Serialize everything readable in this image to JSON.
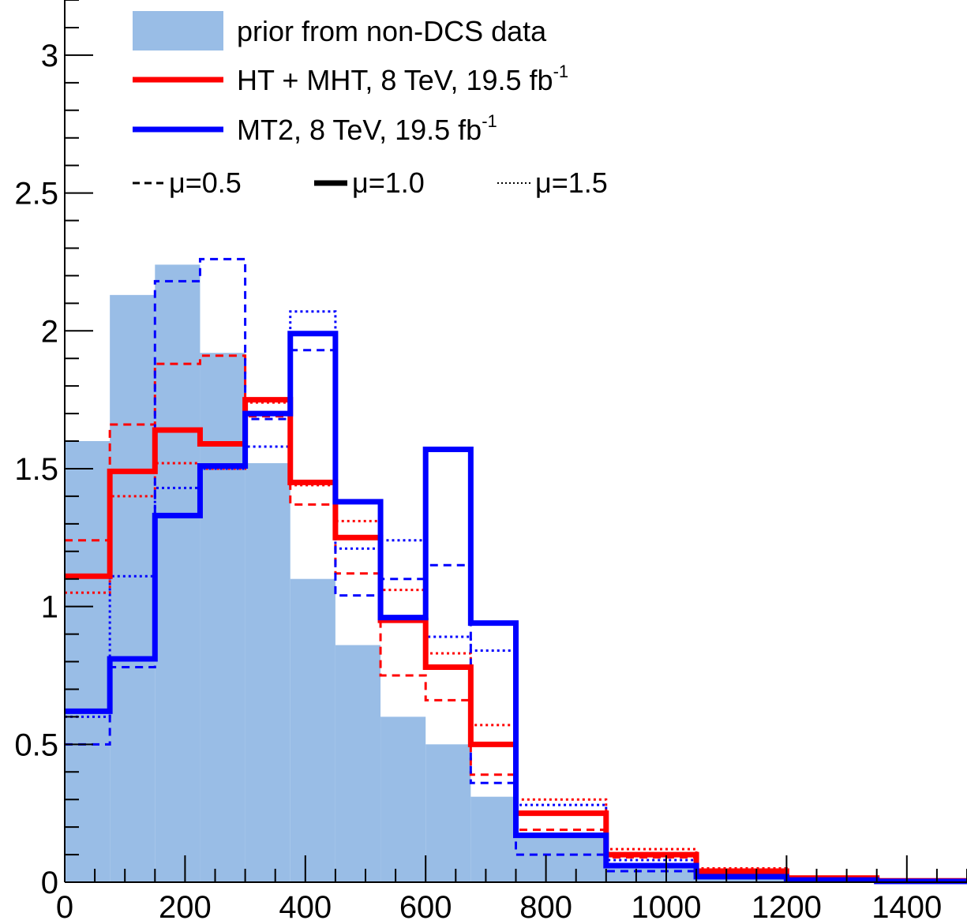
{
  "chart_data": {
    "type": "histogram",
    "xlim": [
      0,
      1500
    ],
    "ylim": [
      0,
      3.2
    ],
    "bin_edges": [
      0,
      75,
      150,
      225,
      300,
      375,
      450,
      525,
      600,
      675,
      750,
      900,
      1050,
      1200,
      1350,
      1500
    ],
    "x_ticks": [
      "0",
      "200",
      "400",
      "600",
      "800",
      "1000",
      "1200",
      "1400"
    ],
    "x_tick_values": [
      0,
      200,
      400,
      600,
      800,
      1000,
      1200,
      1400
    ],
    "y_ticks": [
      "0",
      "0.5",
      "1",
      "1.5",
      "2",
      "2.5",
      "3"
    ],
    "y_tick_values": [
      0,
      0.5,
      1,
      1.5,
      2,
      2.5,
      3
    ],
    "prior": {
      "name": "prior from non-DCS data",
      "color": "#99bde6",
      "values": [
        1.6,
        2.13,
        2.24,
        1.92,
        1.52,
        1.1,
        0.86,
        0.6,
        0.5,
        0.31,
        0.17,
        0.06,
        0.02,
        0.01,
        0.0
      ]
    },
    "series": [
      {
        "analysis": "HT + MHT",
        "mu": "0.5",
        "color": "#ff0000",
        "style": "dashed",
        "values": [
          1.24,
          1.66,
          1.88,
          1.91,
          1.69,
          1.37,
          1.12,
          0.75,
          0.66,
          0.39,
          0.19,
          0.09,
          0.035,
          0.015,
          0.004
        ]
      },
      {
        "analysis": "HT + MHT",
        "mu": "1.0",
        "color": "#ff0000",
        "style": "solid",
        "values": [
          1.11,
          1.49,
          1.64,
          1.59,
          1.75,
          1.45,
          1.25,
          0.95,
          0.78,
          0.5,
          0.25,
          0.1,
          0.04,
          0.015,
          0.005
        ]
      },
      {
        "analysis": "HT + MHT",
        "mu": "1.5",
        "color": "#ff0000",
        "style": "dotted",
        "values": [
          1.05,
          1.4,
          1.52,
          1.5,
          1.74,
          1.44,
          1.31,
          1.06,
          0.83,
          0.57,
          0.3,
          0.12,
          0.05,
          0.02,
          0.006
        ]
      },
      {
        "analysis": "MT2",
        "mu": "0.5",
        "color": "#0000ff",
        "style": "dashed",
        "values": [
          0.5,
          0.78,
          2.18,
          2.26,
          1.68,
          1.93,
          1.04,
          1.1,
          1.15,
          0.36,
          0.1,
          0.04,
          0.015,
          0.005,
          0.002
        ]
      },
      {
        "analysis": "MT2",
        "mu": "1.0",
        "color": "#0000ff",
        "style": "solid",
        "values": [
          0.62,
          0.81,
          1.33,
          1.51,
          1.7,
          1.99,
          1.38,
          0.96,
          1.57,
          0.94,
          0.17,
          0.06,
          0.02,
          0.008,
          0.003
        ]
      },
      {
        "analysis": "MT2",
        "mu": "1.5",
        "color": "#0000ff",
        "style": "dotted",
        "values": [
          0.6,
          1.11,
          1.43,
          1.5,
          1.58,
          2.07,
          1.21,
          1.24,
          0.89,
          0.84,
          0.28,
          0.08,
          0.025,
          0.01,
          0.004
        ]
      }
    ],
    "legend": {
      "placement": "top-left",
      "prior_label": "prior from non-DCS data",
      "red_label": "HT + MHT, 8 TeV, 19.5 fb",
      "red_sup": "-1",
      "blue_label": "MT2, 8 TeV, 19.5 fb",
      "blue_sup": "-1",
      "mu_dashed": "μ=0.5",
      "mu_solid": "μ=1.0",
      "mu_dotted": "μ=1.5"
    }
  }
}
